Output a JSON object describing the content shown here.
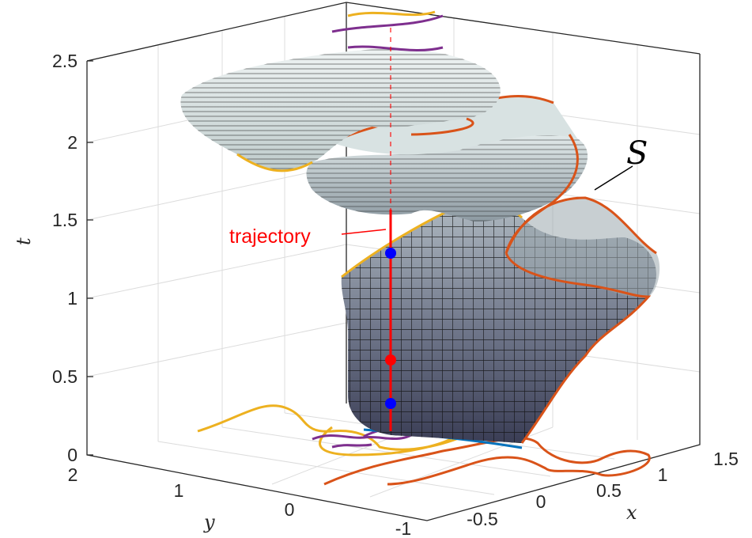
{
  "chart_data": {
    "type": "surface3d",
    "axes": {
      "x": {
        "label": "x",
        "ticks": [
          "-0.5",
          "0",
          "0.5",
          "1",
          "1.5"
        ]
      },
      "y": {
        "label": "y",
        "ticks": [
          "-1",
          "0",
          "1",
          "2"
        ]
      },
      "t": {
        "label": "t",
        "ticks": [
          "0",
          "0.5",
          "1",
          "1.5",
          "2",
          "2.5"
        ]
      }
    },
    "grid": true,
    "annotations": {
      "trajectory": "trajectory",
      "surface": "S"
    },
    "trajectory_points": {
      "blue_t": [
        0.32,
        1.28
      ],
      "red_t": [
        0.6
      ]
    },
    "colors": {
      "trajectory": "#ff0000",
      "blue_points": "#0000ff",
      "boundary_orange": "#d95319",
      "boundary_yellow": "#edb120",
      "boundary_purple": "#7e2f8e",
      "boundary_blue": "#0072bd",
      "surface_light": "#dde7e7",
      "surface_dark": "#4d5266"
    }
  }
}
